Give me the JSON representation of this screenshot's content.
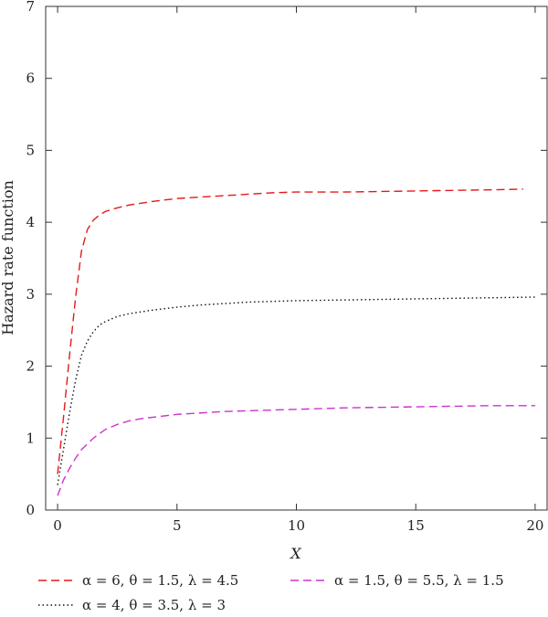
{
  "chart_data": {
    "type": "line",
    "xlabel": "X",
    "ylabel": "Hazard rate function",
    "xlim": [
      -0.5,
      20.5
    ],
    "ylim": [
      0,
      7
    ],
    "xticks": [
      0,
      5,
      10,
      15,
      20
    ],
    "yticks": [
      0,
      1,
      2,
      3,
      4,
      5,
      6,
      7
    ],
    "grid": false,
    "legend_position": "bottom",
    "series": [
      {
        "name": "α = 6, θ = 1.5, λ = 4.5",
        "color": "#e41a1c",
        "dash": "dashed",
        "x": [
          0,
          0.25,
          0.5,
          0.75,
          1,
          1.25,
          1.5,
          1.75,
          2,
          2.5,
          3,
          4,
          5,
          6,
          7,
          8,
          9,
          10,
          12,
          14,
          16,
          18,
          19.5
        ],
        "y": [
          0.5,
          1.3,
          2.15,
          2.95,
          3.6,
          3.9,
          4.03,
          4.1,
          4.15,
          4.2,
          4.24,
          4.29,
          4.33,
          4.35,
          4.37,
          4.39,
          4.41,
          4.42,
          4.42,
          4.43,
          4.44,
          4.45,
          4.46
        ]
      },
      {
        "name": "α = 4, θ = 3.5, λ = 3",
        "color": "#111111",
        "dash": "dotted",
        "x": [
          0,
          0.25,
          0.5,
          0.75,
          1,
          1.25,
          1.5,
          1.75,
          2,
          2.5,
          3,
          4,
          5,
          6,
          7,
          8,
          9,
          10,
          12,
          14,
          16,
          18,
          20
        ],
        "y": [
          0.35,
          0.85,
          1.35,
          1.8,
          2.15,
          2.35,
          2.48,
          2.57,
          2.62,
          2.69,
          2.73,
          2.78,
          2.82,
          2.85,
          2.87,
          2.89,
          2.9,
          2.91,
          2.92,
          2.93,
          2.94,
          2.95,
          2.96
        ]
      },
      {
        "name": "α = 1.5, θ = 5.5, λ = 1.5",
        "color": "#cc33cc",
        "dash": "dashed",
        "x": [
          0,
          0.25,
          0.5,
          0.75,
          1,
          1.5,
          2,
          2.5,
          3,
          3.5,
          4,
          5,
          6,
          7,
          8,
          9,
          10,
          12,
          14,
          16,
          18,
          20
        ],
        "y": [
          0.2,
          0.42,
          0.58,
          0.72,
          0.84,
          1.0,
          1.12,
          1.19,
          1.24,
          1.27,
          1.29,
          1.33,
          1.35,
          1.37,
          1.38,
          1.39,
          1.4,
          1.42,
          1.43,
          1.44,
          1.45,
          1.45
        ]
      }
    ]
  }
}
